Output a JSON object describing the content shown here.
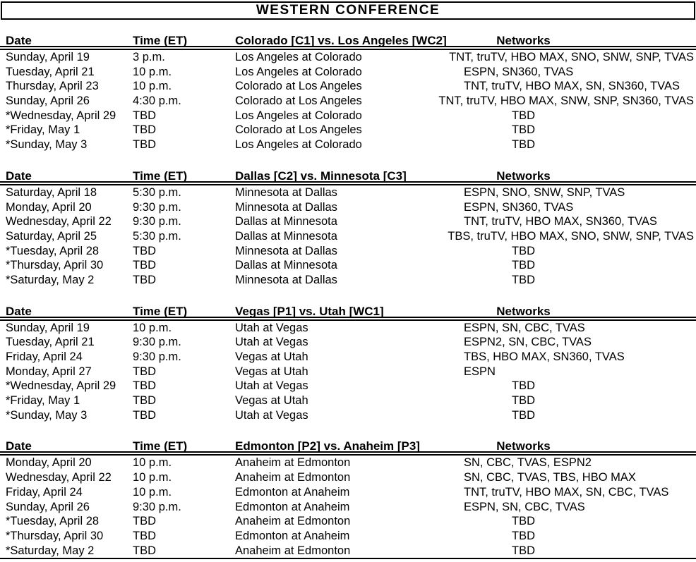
{
  "title": "WESTERN CONFERENCE",
  "colors": {
    "text": "#000000",
    "background": "#ffffff",
    "rule": "#000000"
  },
  "tables": [
    {
      "headers": {
        "date": "Date",
        "time": "Time (ET)",
        "matchup": "Colorado [C1] vs. Los Angeles [WC2]",
        "networks": "Networks"
      },
      "rows": [
        {
          "date": "Sunday, April 19",
          "time": "3 p.m.",
          "matchup": "Los Angeles at Colorado",
          "networks": "TNT, truTV, HBO MAX, SNO, SNW, SNP, TVAS"
        },
        {
          "date": "Tuesday, April 21",
          "time": "10 p.m.",
          "matchup": "Los Angeles at Colorado",
          "networks": "ESPN, SN360, TVAS"
        },
        {
          "date": "Thursday, April 23",
          "time": "10 p.m.",
          "matchup": "Colorado at Los Angeles",
          "networks": "TNT, truTV, HBO MAX, SN, SN360, TVAS"
        },
        {
          "date": "Sunday, April 26",
          "time": "4:30 p.m.",
          "matchup": "Colorado at Los Angeles",
          "networks": "TNT, truTV, HBO MAX, SNW, SNP, SN360, TVAS"
        },
        {
          "date": "*Wednesday, April 29",
          "time": "TBD",
          "matchup": "Los Angeles at Colorado",
          "networks": "TBD"
        },
        {
          "date": "*Friday, May 1",
          "time": "TBD",
          "matchup": "Colorado at Los Angeles",
          "networks": "TBD"
        },
        {
          "date": "*Sunday, May 3",
          "time": "TBD",
          "matchup": "Los Angeles at Colorado",
          "networks": "TBD"
        }
      ]
    },
    {
      "headers": {
        "date": "Date",
        "time": "Time (ET)",
        "matchup": "Dallas [C2] vs. Minnesota [C3]",
        "networks": "Networks"
      },
      "rows": [
        {
          "date": "Saturday, April 18",
          "time": "5:30 p.m.",
          "matchup": "Minnesota at Dallas",
          "networks": "ESPN, SNO, SNW, SNP, TVAS"
        },
        {
          "date": "Monday, April 20",
          "time": "9:30 p.m.",
          "matchup": "Minnesota at Dallas",
          "networks": "ESPN, SN360, TVAS"
        },
        {
          "date": "Wednesday, April 22",
          "time": "9:30 p.m.",
          "matchup": "Dallas at Minnesota",
          "networks": "TNT, truTV, HBO MAX, SN360, TVAS"
        },
        {
          "date": "Saturday, April 25",
          "time": "5:30 p.m.",
          "matchup": "Dallas at Minnesota",
          "networks": "TBS, truTV, HBO MAX, SNO, SNW, SNP, TVAS"
        },
        {
          "date": "*Tuesday, April 28",
          "time": "TBD",
          "matchup": "Minnesota at Dallas",
          "networks": "TBD"
        },
        {
          "date": "*Thursday, April 30",
          "time": "TBD",
          "matchup": "Dallas at Minnesota",
          "networks": "TBD"
        },
        {
          "date": "*Saturday, May 2",
          "time": "TBD",
          "matchup": "Minnesota at Dallas",
          "networks": "TBD"
        }
      ]
    },
    {
      "headers": {
        "date": "Date",
        "time": "Time (ET)",
        "matchup": "Vegas [P1] vs. Utah [WC1]",
        "networks": "Networks"
      },
      "rows": [
        {
          "date": "Sunday, April 19",
          "time": "10 p.m.",
          "matchup": "Utah at Vegas",
          "networks": "ESPN, SN, CBC, TVAS"
        },
        {
          "date": "Tuesday, April 21",
          "time": "9:30 p.m.",
          "matchup": "Utah at Vegas",
          "networks": "ESPN2, SN, CBC, TVAS"
        },
        {
          "date": "Friday, April 24",
          "time": "9:30 p.m.",
          "matchup": "Vegas at Utah",
          "networks": "TBS, HBO MAX, SN360, TVAS"
        },
        {
          "date": "Monday, April 27",
          "time": "TBD",
          "matchup": "Vegas at Utah",
          "networks": "ESPN"
        },
        {
          "date": "*Wednesday, April 29",
          "time": "TBD",
          "matchup": "Utah at Vegas",
          "networks": "TBD"
        },
        {
          "date": "*Friday, May 1",
          "time": "TBD",
          "matchup": "Vegas at Utah",
          "networks": "TBD"
        },
        {
          "date": "*Sunday, May 3",
          "time": "TBD",
          "matchup": "Utah at Vegas",
          "networks": "TBD"
        }
      ]
    },
    {
      "headers": {
        "date": "Date",
        "time": "Time (ET)",
        "matchup": "Edmonton [P2] vs. Anaheim [P3]",
        "networks": "Networks"
      },
      "rows": [
        {
          "date": "Monday, April 20",
          "time": "10 p.m.",
          "matchup": "Anaheim at Edmonton",
          "networks": "SN, CBC, TVAS, ESPN2"
        },
        {
          "date": "Wednesday, April 22",
          "time": "10 p.m.",
          "matchup": "Anaheim at Edmonton",
          "networks": "SN, CBC, TVAS, TBS, HBO MAX"
        },
        {
          "date": "Friday, April 24",
          "time": "10 p.m.",
          "matchup": "Edmonton at Anaheim",
          "networks": "TNT, truTV, HBO MAX, SN, CBC, TVAS"
        },
        {
          "date": "Sunday, April 26",
          "time": "9:30 p.m.",
          "matchup": "Edmonton at Anaheim",
          "networks": "ESPN, SN, CBC, TVAS"
        },
        {
          "date": "*Tuesday, April 28",
          "time": "TBD",
          "matchup": "Anaheim at Edmonton",
          "networks": "TBD"
        },
        {
          "date": "*Thursday, April 30",
          "time": "TBD",
          "matchup": "Edmonton at Anaheim",
          "networks": "TBD"
        },
        {
          "date": "*Saturday, May 2",
          "time": "TBD",
          "matchup": "Anaheim at Edmonton",
          "networks": "TBD"
        }
      ]
    }
  ]
}
